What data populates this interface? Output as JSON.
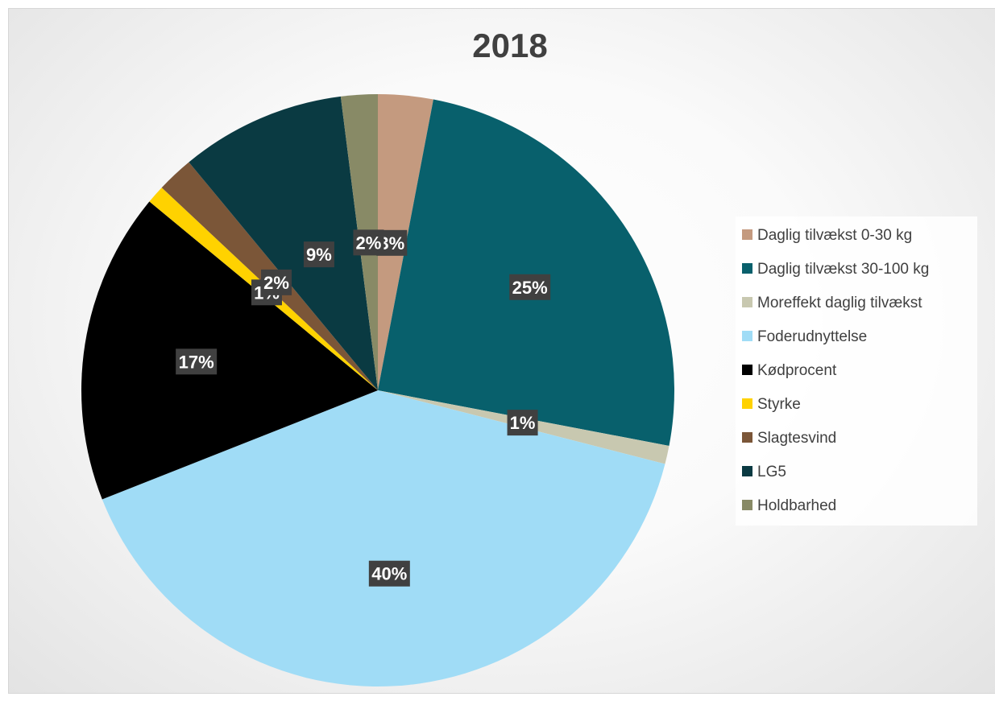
{
  "chart_data": {
    "type": "pie",
    "title": "2018",
    "categories": [
      "Daglig tilvækst 0-30 kg",
      "Daglig tilvækst 30-100 kg",
      "Moreffekt daglig tilvækst",
      "Foderudnyttelse",
      "Kødprocent",
      "Styrke",
      "Slagtesvind",
      "LG5",
      "Holdbarhed"
    ],
    "values": [
      3,
      25,
      1,
      40,
      17,
      1,
      2,
      9,
      2
    ],
    "labels": [
      "3%",
      "25%",
      "1%",
      "40%",
      "17%",
      "1%",
      "2%",
      "9%",
      "2%"
    ],
    "colors": [
      "#c49a7f",
      "#08606c",
      "#c8c8b0",
      "#a0dcf6",
      "#000000",
      "#ffd200",
      "#7b5638",
      "#0a3a42",
      "#888a66"
    ],
    "legend_position": "right"
  }
}
